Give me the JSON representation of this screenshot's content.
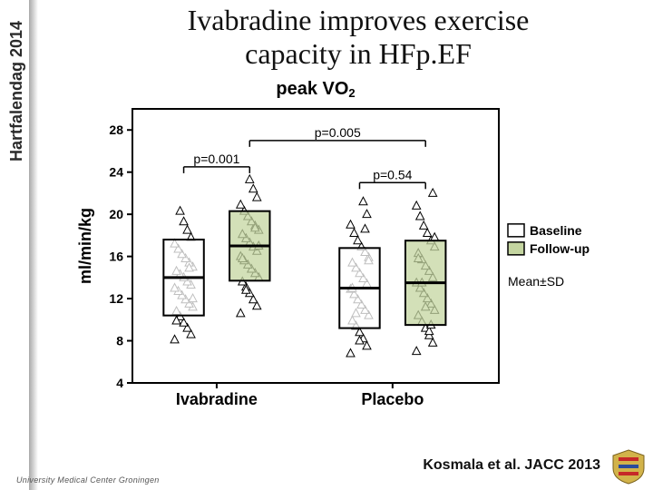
{
  "meta": {
    "sidebar_label": "Hartfalendag 2014",
    "title_line1": "Ivabradine improves exercise",
    "title_line2": "capacity in HFp.EF",
    "citation": "Kosmala et al. JACC 2013",
    "institution": "University Medical Center Groningen"
  },
  "chart": {
    "type": "boxplot-with-scatter",
    "title": "peak VO",
    "title_sub": "2",
    "title_fontsize": 20,
    "xlabel_left": "Ivabradine",
    "xlabel_right": "Placebo",
    "xlabel_fontsize": 18,
    "ylabel": "ml/min/kg",
    "ylabel_fontsize": 18,
    "ylim": [
      4,
      30
    ],
    "yticks": [
      4,
      8,
      12,
      16,
      20,
      24,
      28
    ],
    "tick_fontsize": 14,
    "background_color": "#ffffff",
    "axis_color": "#000000",
    "axis_width": 2,
    "marker_style": "triangle",
    "marker_size": 5,
    "marker_stroke": "#000000",
    "marker_fill": "#ffffff",
    "box_fill_baseline": "#ffffff",
    "box_fill_followup": "#c4d5a0",
    "box_stroke": "#000000",
    "box_stroke_width": 2,
    "median_stroke_width": 3,
    "legend": {
      "items": [
        {
          "label": "Baseline",
          "fill": "#ffffff"
        },
        {
          "label": "Follow-up",
          "fill": "#c4d5a0"
        }
      ],
      "note": "Mean±SD",
      "fontsize": 14
    },
    "annotations": [
      {
        "text": "p=0.001",
        "from_group": 0,
        "to_group": 1,
        "y": 24.5
      },
      {
        "text": "p=0.005",
        "from_group": 1,
        "to_group": 3,
        "y": 27.0
      },
      {
        "text": "p=0.54",
        "from_group": 2,
        "to_group": 3,
        "y": 23.0
      }
    ],
    "groups": [
      {
        "name": "Ivabradine Baseline",
        "x": 0,
        "fill": "#ffffff",
        "mean": 14.0,
        "sd": 3.6,
        "points": [
          8.1,
          8.6,
          9.2,
          9.7,
          10.3,
          10.8,
          11.2,
          11.5,
          11.9,
          12.3,
          12.7,
          13.0,
          13.3,
          13.6,
          14.0,
          14.3,
          14.6,
          15.0,
          15.4,
          15.8,
          16.2,
          16.7,
          17.2,
          17.8,
          18.5,
          19.3,
          20.3,
          9.9,
          12.0,
          14.9
        ]
      },
      {
        "name": "Ivabradine Follow-up",
        "x": 1,
        "fill": "#c4d5a0",
        "mean": 17.0,
        "sd": 3.3,
        "points": [
          10.6,
          11.3,
          11.9,
          12.5,
          13.1,
          13.6,
          14.0,
          14.4,
          14.8,
          15.2,
          15.6,
          16.0,
          16.5,
          16.9,
          17.3,
          17.7,
          18.1,
          18.5,
          18.9,
          19.3,
          19.8,
          20.3,
          20.9,
          21.6,
          22.4,
          23.3,
          12.8,
          15.8,
          17.0,
          18.7
        ]
      },
      {
        "name": "Placebo Baseline",
        "x": 2,
        "fill": "#ffffff",
        "mean": 13.0,
        "sd": 3.8,
        "points": [
          6.8,
          7.5,
          8.2,
          8.8,
          9.4,
          9.9,
          10.4,
          10.9,
          11.4,
          11.9,
          12.4,
          12.9,
          13.4,
          13.9,
          14.4,
          14.9,
          15.4,
          15.9,
          16.4,
          16.9,
          17.5,
          18.2,
          19.0,
          20.0,
          21.2,
          8.0,
          10.6,
          13.0,
          15.6,
          18.6
        ]
      },
      {
        "name": "Placebo Follow-up",
        "x": 3,
        "fill": "#c4d5a0",
        "mean": 13.5,
        "sd": 4.0,
        "points": [
          7.0,
          7.8,
          8.5,
          9.2,
          9.8,
          10.4,
          10.9,
          11.5,
          12.0,
          12.5,
          13.0,
          13.5,
          14.0,
          14.6,
          15.1,
          15.7,
          16.3,
          16.9,
          17.5,
          18.2,
          18.9,
          19.8,
          20.8,
          22.0,
          8.9,
          11.2,
          13.5,
          15.8,
          17.8,
          9.5
        ]
      }
    ]
  },
  "colors": {
    "crest_shield": "#d2b34a",
    "crest_accent": "#c62828",
    "crest_blue": "#2a4b9b"
  }
}
